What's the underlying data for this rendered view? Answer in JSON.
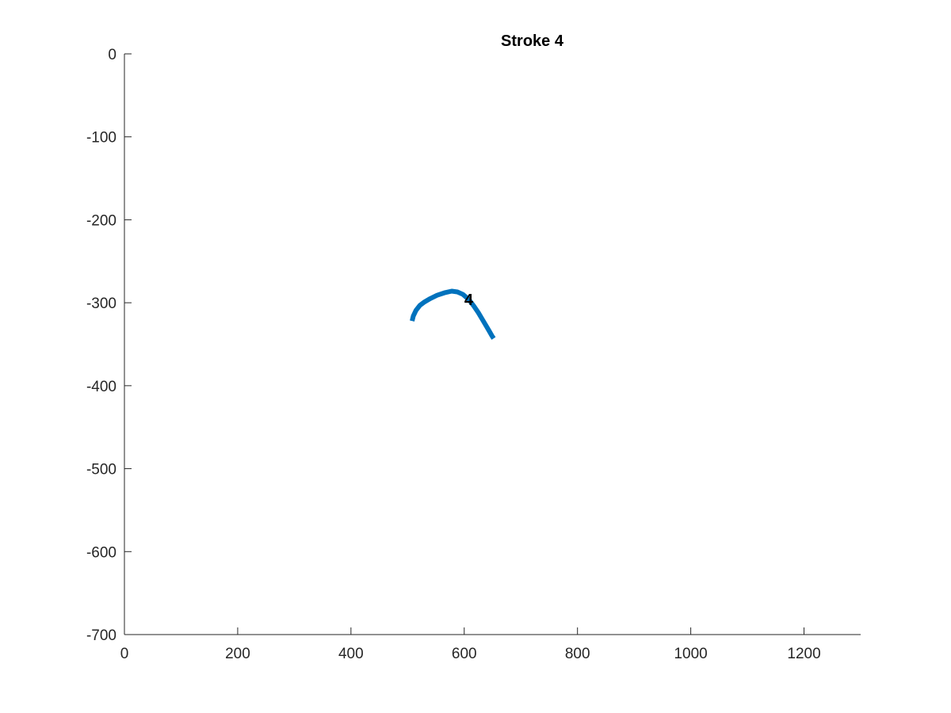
{
  "chart_data": {
    "type": "line",
    "title": "Stroke 4",
    "xlabel": "",
    "ylabel": "",
    "xlim": [
      0,
      1300
    ],
    "ylim": [
      -700,
      0
    ],
    "xticks": [
      0,
      200,
      400,
      600,
      800,
      1000,
      1200
    ],
    "yticks": [
      0,
      -100,
      -200,
      -300,
      -400,
      -500,
      -600,
      -700
    ],
    "grid": false,
    "series": [
      {
        "color": "#0072BD",
        "x": [
          508,
          510,
          515,
          522,
          530,
          540,
          552,
          565,
          578,
          588,
          598,
          608,
          617,
          625,
          632,
          638,
          644,
          649,
          652
        ],
        "y": [
          -322,
          -316,
          -309,
          -303,
          -299,
          -295,
          -291,
          -288,
          -286,
          -287,
          -290,
          -296,
          -304,
          -312,
          -320,
          -327,
          -334,
          -340,
          -343
        ]
      }
    ],
    "annotations": [
      {
        "text": "4",
        "x": 608,
        "y": -296
      }
    ]
  }
}
